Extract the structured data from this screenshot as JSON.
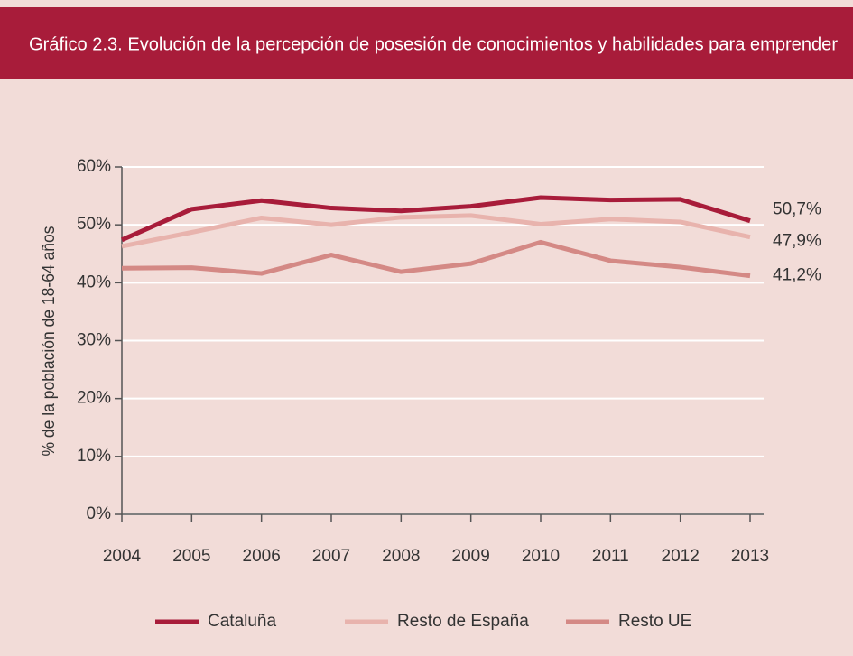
{
  "chart_data": {
    "type": "line",
    "title": "Gráfico 2.3. Evolución de la percepción de posesión de conocimientos y habilidades para emprender",
    "y_label": "% de la población de 18-64 años",
    "categories": [
      "2004",
      "2005",
      "2006",
      "2007",
      "2008",
      "2009",
      "2010",
      "2011",
      "2012",
      "2013"
    ],
    "series": [
      {
        "name": "Cataluña",
        "color": "#a81c3a",
        "values": [
          47.4,
          52.7,
          54.2,
          52.9,
          52.4,
          53.2,
          54.7,
          54.3,
          54.4,
          50.7
        ],
        "value_labels": [
          null,
          null,
          null,
          null,
          null,
          null,
          null,
          null,
          null,
          "50,7%"
        ]
      },
      {
        "name": "Resto de España",
        "color": "#e8b3ad",
        "values": [
          46.3,
          48.7,
          51.2,
          50.0,
          51.3,
          51.6,
          50.1,
          51.0,
          50.5,
          47.9
        ],
        "value_labels": [
          null,
          null,
          null,
          null,
          null,
          null,
          null,
          null,
          null,
          "47,9%"
        ]
      },
      {
        "name": "Resto UE",
        "color": "#d48985",
        "values": [
          42.5,
          42.6,
          41.6,
          44.8,
          41.9,
          43.3,
          47.0,
          43.8,
          42.7,
          41.2
        ],
        "value_labels": [
          null,
          null,
          null,
          null,
          null,
          null,
          null,
          null,
          null,
          "41,2%"
        ]
      }
    ],
    "ylim": [
      0,
      60
    ],
    "yticks": [
      {
        "value": 0,
        "label": "0%"
      },
      {
        "value": 10,
        "label": "10%"
      },
      {
        "value": 20,
        "label": "20%"
      },
      {
        "value": 30,
        "label": "30%"
      },
      {
        "value": 40,
        "label": "40%"
      },
      {
        "value": 50,
        "label": "50%"
      },
      {
        "value": 60,
        "label": "60%"
      }
    ],
    "grid": true
  }
}
